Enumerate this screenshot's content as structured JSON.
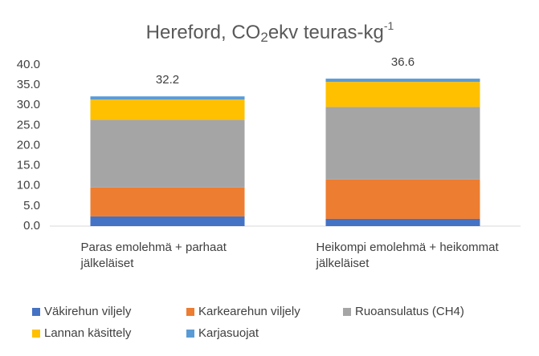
{
  "chart_data": {
    "type": "stacked_bar",
    "title": {
      "main": "Hereford, CO",
      "sub": "2",
      "mid": "ekv teuras-kg",
      "sup": "-1"
    },
    "categories": [
      [
        "Paras emolehmä + parhaat",
        "jälkeläiset"
      ],
      [
        "Heikompi emolehmä + heikommat",
        "jälkeläiset"
      ]
    ],
    "series": [
      {
        "name": "Väkirehun viljely",
        "color": "#4472c4",
        "values": [
          2.4,
          1.8
        ]
      },
      {
        "name": "Karkearehun viljely",
        "color": "#ed7d31",
        "values": [
          7.2,
          9.8
        ]
      },
      {
        "name": "Ruoansulatus (CH4)",
        "color": "#a5a5a5",
        "values": [
          16.8,
          18.0
        ]
      },
      {
        "name": "Lannan käsittely",
        "color": "#ffc000",
        "values": [
          5.0,
          6.2
        ]
      },
      {
        "name": "Karjasuojat",
        "color": "#5b9bd5",
        "values": [
          0.8,
          0.8
        ]
      }
    ],
    "totals": [
      32.2,
      36.6
    ],
    "ylim": [
      0,
      40
    ],
    "yticks": [
      {
        "value": 0,
        "label": "0.0"
      },
      {
        "value": 5,
        "label": "5.0"
      },
      {
        "value": 10,
        "label": "10.0"
      },
      {
        "value": 15,
        "label": "15.0"
      },
      {
        "value": 20,
        "label": "20.0"
      },
      {
        "value": 25,
        "label": "25.0"
      },
      {
        "value": 30,
        "label": "30.0"
      },
      {
        "value": 35,
        "label": "35.0"
      },
      {
        "value": 40,
        "label": "40.0"
      }
    ],
    "grid": false
  }
}
